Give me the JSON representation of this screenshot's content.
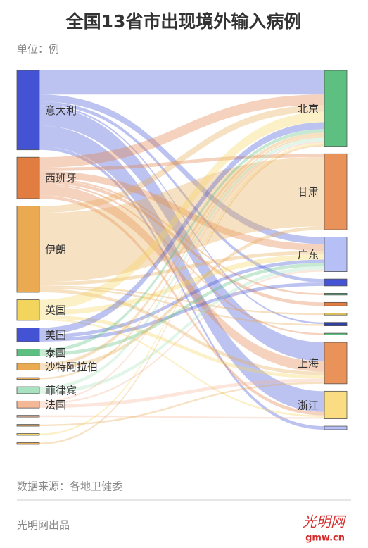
{
  "chart_data": {
    "type": "sankey",
    "title": "全国13省市出现境外输入病例",
    "subtitle": "单位：例",
    "source": "数据来源：各地卫健委",
    "footer": "光明网出品",
    "logo": "光明网",
    "logo_url": "gmw.cn",
    "sources": [
      "意大利",
      "西班牙",
      "伊朗",
      "英国",
      "美国",
      "泰国",
      "沙特阿拉伯",
      null,
      "菲律宾",
      "法国",
      null,
      null,
      null,
      null
    ],
    "source_colors": [
      "#4353d4",
      "#e27d42",
      "#e9aa52",
      "#f3d45c",
      "#4353d4",
      "#5dbf80",
      "#e9aa52",
      "#e9aa52",
      "#a9e2c0",
      "#f5b897",
      "#f5b897",
      "#e9aa52",
      "#f3d45c",
      "#e9aa52"
    ],
    "targets": [
      "北京",
      "甘肃",
      "广东",
      null,
      null,
      null,
      null,
      null,
      null,
      "上海",
      "浙江",
      null
    ],
    "target_colors": [
      "#5dbf80",
      "#e9935a",
      "#b6c0f6",
      "#4353d4",
      "#5dbf80",
      "#e27d42",
      "#f3d45c",
      "#2f3fa8",
      "#5dbf80",
      "#e9935a",
      "#fadd82",
      "#b6c0f6"
    ],
    "values": [
      [
        14,
        0,
        4,
        2,
        0,
        0,
        0,
        1,
        0,
        11,
        12,
        2
      ],
      [
        6,
        2,
        4,
        0,
        1,
        2,
        0,
        0,
        1,
        6,
        2,
        0
      ],
      [
        4,
        40,
        2,
        0,
        0,
        0,
        1,
        1,
        0,
        2,
        0,
        0
      ],
      [
        6,
        0,
        3,
        0,
        0,
        0,
        0,
        0,
        0,
        2,
        1,
        0
      ],
      [
        4,
        0,
        2,
        2,
        0,
        0,
        0,
        0,
        0,
        0,
        0,
        0
      ],
      [
        2,
        0,
        2,
        0,
        0,
        0,
        0,
        0,
        0,
        0,
        0,
        0
      ],
      [
        2,
        2,
        0,
        0,
        0,
        0,
        0,
        0,
        0,
        0,
        0,
        0
      ],
      [
        1,
        0,
        0,
        0,
        0,
        0,
        0,
        0,
        0,
        0,
        0,
        0
      ],
      [
        2,
        0,
        2,
        0,
        0,
        0,
        0,
        0,
        0,
        0,
        0,
        0
      ],
      [
        1,
        0,
        1,
        0,
        0,
        0,
        0,
        0,
        0,
        2,
        0,
        0
      ],
      [
        0,
        0,
        0,
        0,
        0,
        0,
        0,
        0,
        0,
        0,
        1,
        0
      ],
      [
        0,
        0,
        0,
        0,
        0,
        0,
        0,
        0,
        0,
        1,
        0,
        0
      ],
      [
        1,
        0,
        0,
        0,
        0,
        0,
        0,
        0,
        0,
        0,
        0,
        0
      ],
      [
        1,
        0,
        0,
        0,
        0,
        0,
        0,
        0,
        0,
        0,
        0,
        0
      ]
    ]
  }
}
